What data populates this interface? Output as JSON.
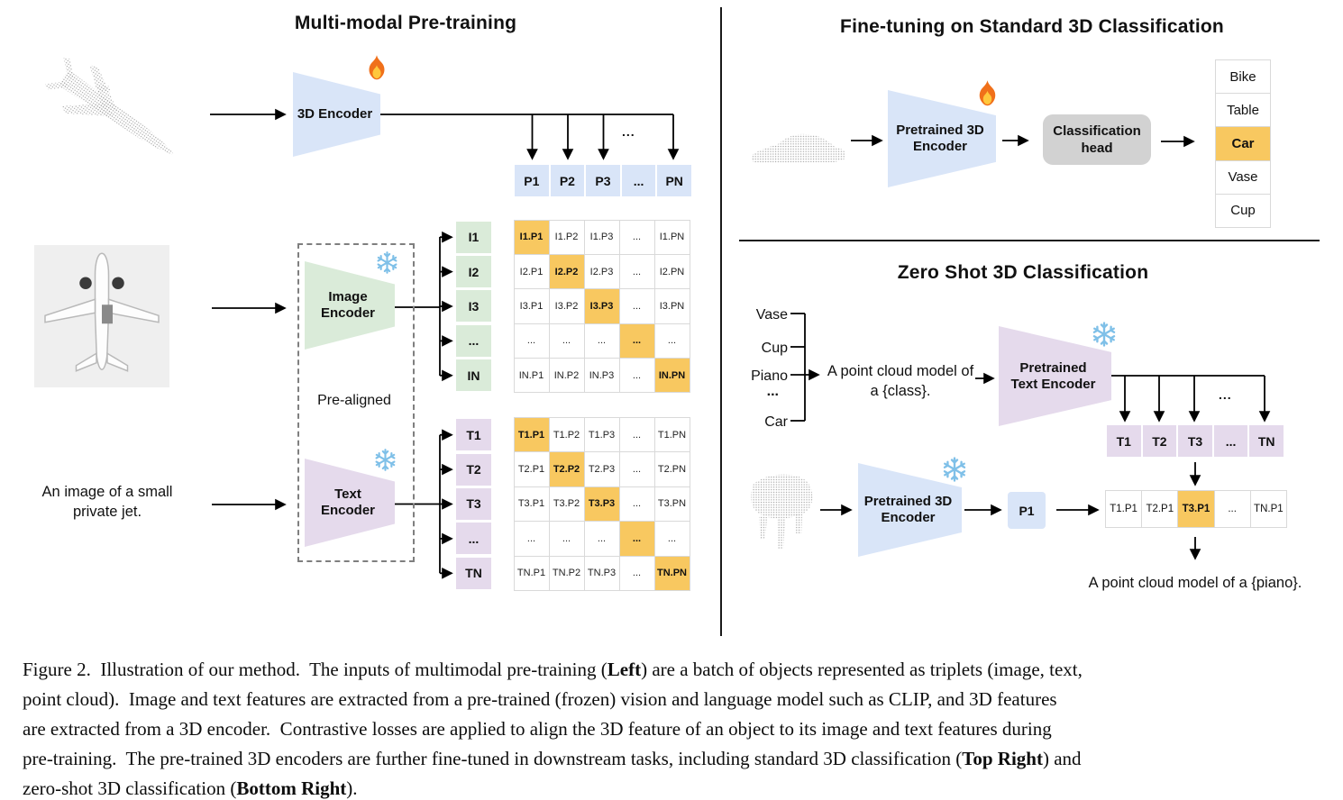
{
  "figure": {
    "left": {
      "title": "Multi-modal Pre-training",
      "encoder_3d_label": "3D Encoder",
      "p_row": [
        "P1",
        "P2",
        "P3",
        "...",
        "PN"
      ],
      "image_encoder_label": "Image Encoder",
      "text_encoder_label": "Text Encoder",
      "prealigned_label": "Pre-aligned",
      "image_caption": "An image of a small private jet.",
      "trunk_ellipsis": "...",
      "i_col": [
        "I1",
        "I2",
        "I3",
        "...",
        "IN"
      ],
      "t_col": [
        "T1",
        "T2",
        "T3",
        "...",
        "TN"
      ],
      "i_matrix": {
        "diagonal_highlight": true,
        "rows": [
          [
            "I1.P1",
            "I1.P2",
            "I1.P3",
            "...",
            "I1.PN"
          ],
          [
            "I2.P1",
            "I2.P2",
            "I2.P3",
            "...",
            "I2.PN"
          ],
          [
            "I3.P1",
            "I3.P2",
            "I3.P3",
            "...",
            "I3.PN"
          ],
          [
            "...",
            "...",
            "...",
            "...",
            "..."
          ],
          [
            "IN.P1",
            "IN.P2",
            "IN.P3",
            "...",
            "IN.PN"
          ]
        ]
      },
      "t_matrix": {
        "diagonal_highlight": true,
        "rows": [
          [
            "T1.P1",
            "T1.P2",
            "T1.P3",
            "...",
            "T1.PN"
          ],
          [
            "T2.P1",
            "T2.P2",
            "T2.P3",
            "...",
            "T2.PN"
          ],
          [
            "T3.P1",
            "T3.P2",
            "T3.P3",
            "...",
            "T3.PN"
          ],
          [
            "...",
            "...",
            "...",
            "...",
            "..."
          ],
          [
            "TN.P1",
            "TN.P2",
            "TN.P3",
            "...",
            "TN.PN"
          ]
        ]
      }
    },
    "top_right": {
      "title": "Fine-tuning on Standard 3D Classification",
      "encoder_label": "Pretrained 3D Encoder",
      "head_label": "Classification head",
      "classes": [
        "Bike",
        "Table",
        "Car",
        "Vase",
        "Cup"
      ],
      "highlighted_class": "Car"
    },
    "bottom_right": {
      "title": "Zero Shot 3D Classification",
      "class_list": [
        "Vase",
        "Cup",
        "Piano",
        "...",
        "Car"
      ],
      "prompt": "A point cloud model of a {class}.",
      "text_encoder_label": "Pretrained Text Encoder",
      "t_row": [
        "T1",
        "T2",
        "T3",
        "...",
        "TN"
      ],
      "trunk_ellipsis": "...",
      "encoder_3d_label": "Pretrained 3D Encoder",
      "p1_label": "P1",
      "result_row": [
        "T1.P1",
        "T2.P1",
        "T3.P1",
        "...",
        "TN.P1"
      ],
      "result_text": "A point cloud model of a {piano}."
    },
    "colors": {
      "blue": "#D9E5F8",
      "green": "#DAEBD9",
      "purple": "#E5DAEC",
      "highlight_orange": "#F8C860",
      "head_gray": "#D2D2D2"
    },
    "caption": {
      "lines": [
        [
          {
            "t": "Figure 2.  Illustration of our method.  The inputs of multimodal pre-training ("
          },
          {
            "t": "Left",
            "b": 1
          },
          {
            "t": ") are a batch of objects represented as triplets (image, text,"
          }
        ],
        [
          {
            "t": "point cloud).  Image and text features are extracted from a pre-trained (frozen) vision and language model such as CLIP, and 3D features"
          }
        ],
        [
          {
            "t": "are extracted from a 3D encoder.  Contrastive losses are applied to align the 3D feature of an object to its image and text features during"
          }
        ],
        [
          {
            "t": "pre-training.  The pre-trained 3D encoders are further fine-tuned in downstream tasks, including standard 3D classification ("
          },
          {
            "t": "Top Right",
            "b": 1
          },
          {
            "t": ") and"
          }
        ],
        [
          {
            "t": "zero-shot 3D classification ("
          },
          {
            "t": "Bottom Right",
            "b": 1
          },
          {
            "t": ")."
          }
        ]
      ]
    }
  }
}
